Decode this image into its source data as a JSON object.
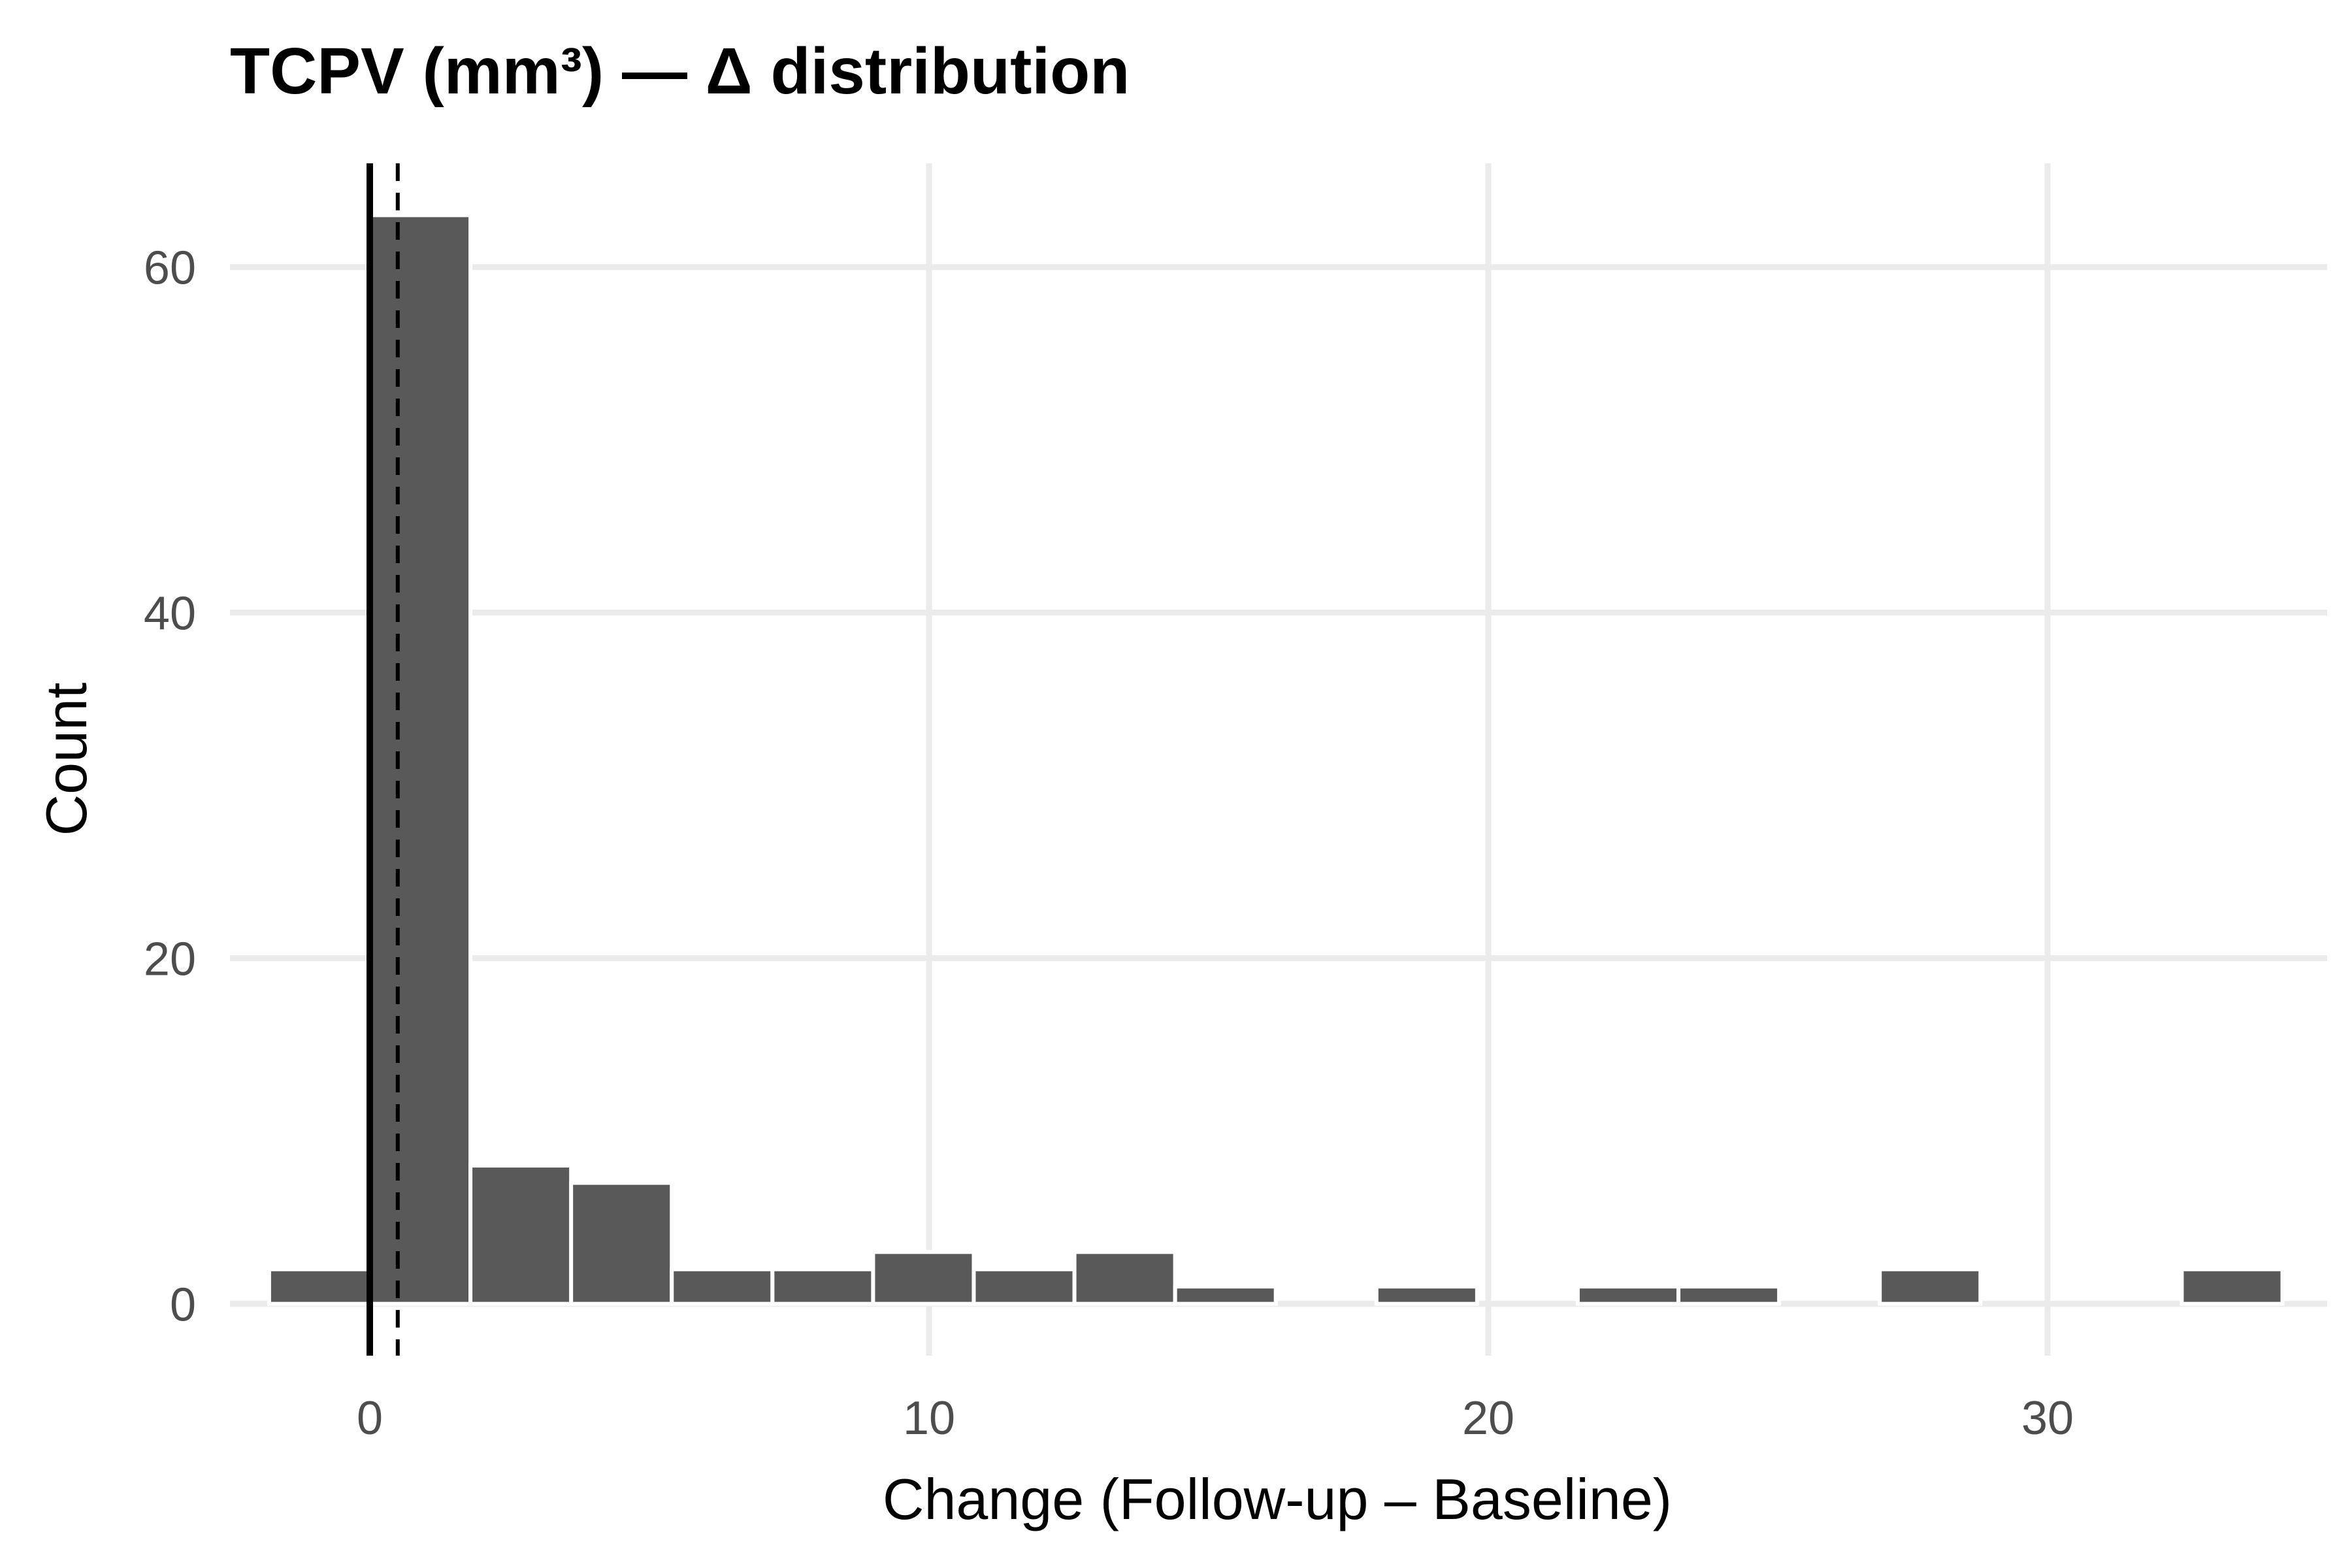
{
  "chart_data": {
    "type": "bar",
    "title": "TCPV (mm³) — Δ distribution",
    "xlabel": "Change (Follow-up – Baseline)",
    "ylabel": "Count",
    "xlim": [
      -2.5,
      35
    ],
    "ylim": [
      -3,
      66
    ],
    "xticks": [
      0,
      10,
      20,
      30
    ],
    "yticks": [
      0,
      20,
      40,
      60
    ],
    "grid": true,
    "bin_width": 1.8,
    "bins": [
      {
        "x0": -1.8,
        "x1": 0.0,
        "count": 2
      },
      {
        "x0": 0.0,
        "x1": 1.8,
        "count": 63
      },
      {
        "x0": 1.8,
        "x1": 3.6,
        "count": 8
      },
      {
        "x0": 3.6,
        "x1": 5.4,
        "count": 7
      },
      {
        "x0": 5.4,
        "x1": 7.2,
        "count": 2
      },
      {
        "x0": 7.2,
        "x1": 9.0,
        "count": 2
      },
      {
        "x0": 9.0,
        "x1": 10.8,
        "count": 3
      },
      {
        "x0": 10.8,
        "x1": 12.6,
        "count": 2
      },
      {
        "x0": 12.6,
        "x1": 14.4,
        "count": 3
      },
      {
        "x0": 14.4,
        "x1": 16.2,
        "count": 1
      },
      {
        "x0": 16.2,
        "x1": 18.0,
        "count": 0
      },
      {
        "x0": 18.0,
        "x1": 19.8,
        "count": 1
      },
      {
        "x0": 19.8,
        "x1": 21.6,
        "count": 0
      },
      {
        "x0": 21.6,
        "x1": 23.4,
        "count": 1
      },
      {
        "x0": 23.4,
        "x1": 25.2,
        "count": 1
      },
      {
        "x0": 25.2,
        "x1": 27.0,
        "count": 0
      },
      {
        "x0": 27.0,
        "x1": 28.8,
        "count": 2
      },
      {
        "x0": 28.8,
        "x1": 30.6,
        "count": 0
      },
      {
        "x0": 30.6,
        "x1": 32.4,
        "count": 0
      },
      {
        "x0": 32.4,
        "x1": 34.2,
        "count": 2
      }
    ],
    "reference_lines": [
      {
        "x": 0,
        "style": "solid"
      },
      {
        "x": 0.5,
        "style": "dashed"
      }
    ],
    "colors": {
      "bar": "#595959",
      "bar_outline": "#ffffff",
      "grid": "#ebebeb",
      "reference": "#000000"
    }
  }
}
